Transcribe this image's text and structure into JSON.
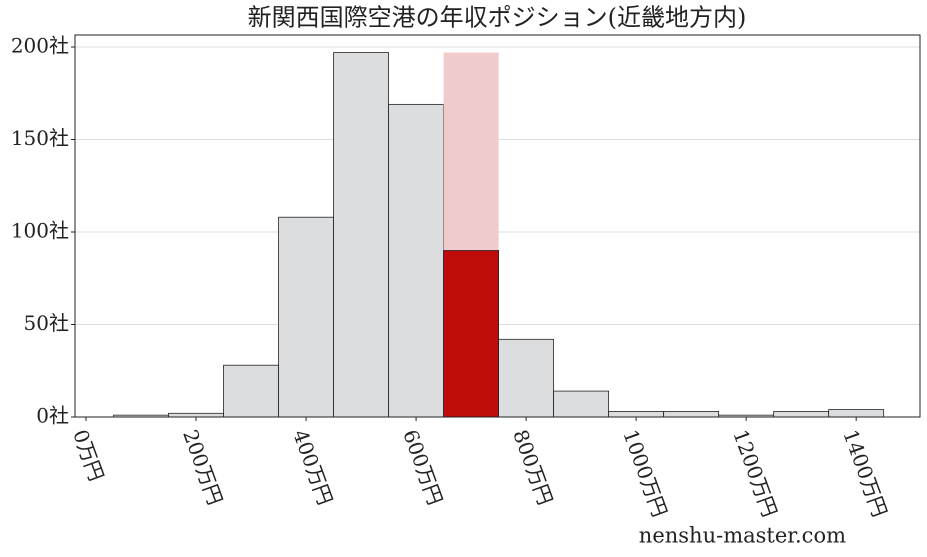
{
  "chart_data": {
    "type": "histogram",
    "title": "新関西国際空港の年収ポジション(近畿地方内)",
    "bins": [
      50,
      150,
      250,
      350,
      450,
      550,
      650,
      750,
      850,
      950,
      1050,
      1150,
      1250,
      1350,
      1450
    ],
    "values": [
      1,
      2,
      28,
      108,
      197,
      169,
      90,
      42,
      14,
      3,
      3,
      1,
      3,
      4
    ],
    "color": "#dcdddf",
    "highlight": {
      "bin": 6,
      "color": "#c00b0b",
      "band_color": "#f0cbcb"
    },
    "xlim": [
      -20,
      1516
    ],
    "ylim": [
      0,
      206.5
    ],
    "xticks": [
      {
        "value": 0,
        "label": "0万円"
      },
      {
        "value": 200,
        "label": "200万円"
      },
      {
        "value": 400,
        "label": "400万円"
      },
      {
        "value": 600,
        "label": "600万円"
      },
      {
        "value": 800,
        "label": "800万円"
      },
      {
        "value": 1000,
        "label": "1000万円"
      },
      {
        "value": 1200,
        "label": "1200万円"
      },
      {
        "value": 1400,
        "label": "1400万円"
      }
    ],
    "yticks": [
      {
        "value": 0,
        "label": "0社"
      },
      {
        "value": 50,
        "label": "50社"
      },
      {
        "value": 100,
        "label": "100社"
      },
      {
        "value": 150,
        "label": "150社"
      },
      {
        "value": 200,
        "label": "200社"
      }
    ],
    "grid": true,
    "watermark": "nenshu-master.com"
  }
}
